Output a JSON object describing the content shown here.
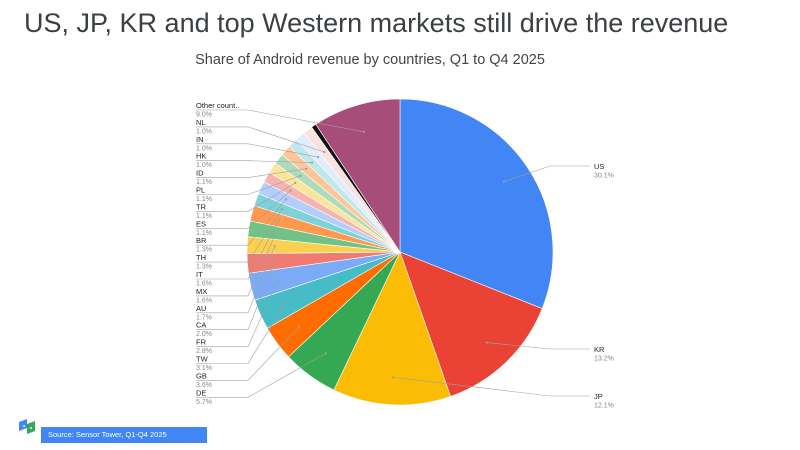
{
  "headline": "US, JP, KR and top Western markets still drive the revenue",
  "colors": {
    "US": "#4285f4",
    "KR": "#ea4335",
    "JP": "#fbbc04",
    "DE": "#34a853",
    "GB": "#ff6d01",
    "TW": "#46bdc6",
    "FR": "#7baaf7",
    "CA": "#f07b72",
    "AU": "#fcd04f",
    "MX": "#71c287",
    "IT": "#ff994d",
    "TH": "#7ed1d7",
    "BR": "#b3cefb",
    "ES": "#f7b4ae",
    "TR": "#fde49b",
    "PL": "#aedcba",
    "ID": "#ffc599",
    "HK": "#bde8ec",
    "IN": "#e1ecfd",
    "NL": "#fbe1df",
    "Other": "#a64d79",
    "gap": "#111111"
  },
  "chart_data": {
    "type": "pie",
    "title": "Share of Android revenue by countries, Q1 to Q4 2025",
    "slices": [
      {
        "label": "US",
        "value": 30.1,
        "value_label": "30.1%"
      },
      {
        "label": "KR",
        "value": 13.2,
        "value_label": "13.2%"
      },
      {
        "label": "JP",
        "value": 12.1,
        "value_label": "12.1%"
      },
      {
        "label": "DE",
        "value": 5.7,
        "value_label": "5.7%"
      },
      {
        "label": "GB",
        "value": 3.6,
        "value_label": "3.6%"
      },
      {
        "label": "TW",
        "value": 3.1,
        "value_label": "3.1%"
      },
      {
        "label": "FR",
        "value": 2.8,
        "value_label": "2.8%"
      },
      {
        "label": "CA",
        "value": 2.0,
        "value_label": "2.0%"
      },
      {
        "label": "AU",
        "value": 1.7,
        "value_label": "1.7%"
      },
      {
        "label": "MX",
        "value": 1.6,
        "value_label": "1.6%"
      },
      {
        "label": "IT",
        "value": 1.6,
        "value_label": "1.6%"
      },
      {
        "label": "TH",
        "value": 1.3,
        "value_label": "1.3%"
      },
      {
        "label": "BR",
        "value": 1.3,
        "value_label": "1.3%"
      },
      {
        "label": "ES",
        "value": 1.1,
        "value_label": "1.1%"
      },
      {
        "label": "TR",
        "value": 1.1,
        "value_label": "1.1%"
      },
      {
        "label": "PL",
        "value": 1.1,
        "value_label": "1.1%"
      },
      {
        "label": "ID",
        "value": 1.1,
        "value_label": "1.1%"
      },
      {
        "label": "HK",
        "value": 1.0,
        "value_label": "1.0%"
      },
      {
        "label": "IN",
        "value": 1.0,
        "value_label": "1.0%"
      },
      {
        "label": "NL",
        "value": 1.0,
        "value_label": "1.0%"
      },
      {
        "label": "",
        "value": 0.5,
        "value_label": ""
      },
      {
        "label": "Other count..",
        "value": 9.0,
        "value_label": "9.0%"
      }
    ]
  },
  "source": "Source: Sensor Tower,  Q1-Q4 2025",
  "logo_icon": "sensor-tower-logo-icon"
}
